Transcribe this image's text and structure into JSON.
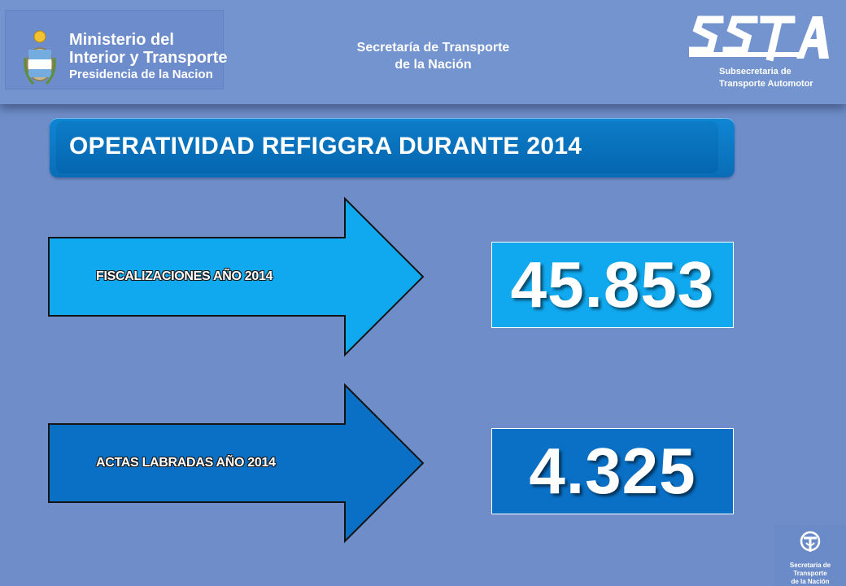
{
  "header": {
    "ministry_line1": "Ministerio del",
    "ministry_line2": "Interior y Transporte",
    "ministry_line3": "Presidencia de la Nacion",
    "secretaria_line1": "Secretaría de Transporte",
    "secretaria_line2": "de la Nación",
    "ssta_logo_text": "SSTA",
    "ssta_caption_line1": "Subsecretaria de",
    "ssta_caption_line2": "Transporte Automotor"
  },
  "title": "OPERATIVIDAD REFIGGRA DURANTE 2014",
  "stats": [
    {
      "label": "FISCALIZACIONES AÑO 2014",
      "value": "45.853",
      "color": "#10a8ef"
    },
    {
      "label": "ACTAS LABRADAS AÑO 2014",
      "value": "4.325",
      "color": "#0970c5"
    }
  ],
  "footer_logo": {
    "line1": "Secretaría de Transporte",
    "line2": "de la Nación"
  },
  "colors": {
    "background": "#6f8ec9",
    "title_bar": "#0a6cb6"
  }
}
